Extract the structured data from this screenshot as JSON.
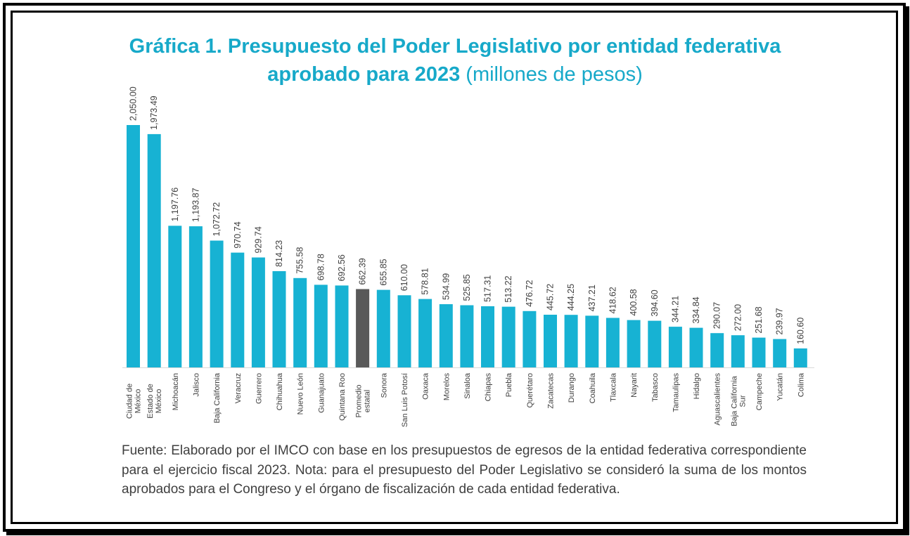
{
  "chart_data": {
    "type": "bar",
    "title_bold_line1": "Gráfica 1. Presupuesto del Poder Legislativo por entidad federativa",
    "title_bold_line2": "aprobado para 2023",
    "title_unit": "(millones de pesos)",
    "categories": [
      "Ciudad de México",
      "Estado de México",
      "Michoacán",
      "Jalisco",
      "Baja California",
      "Veracruz",
      "Guerrero",
      "Chihuahua",
      "Nuevo León",
      "Guanajuato",
      "Quintana Roo",
      "Promedio estatal",
      "Sonora",
      "San Luis Potosí",
      "Oaxaca",
      "Morelos",
      "Sinaloa",
      "Chiapas",
      "Puebla",
      "Querétaro",
      "Zacatecas",
      "Durango",
      "Coahuila",
      "Tlaxcala",
      "Nayarit",
      "Tabasco",
      "Tamaulipas",
      "Hidalgo",
      "Aguascalientes",
      "Baja California Sur",
      "Campeche",
      "Yucatán",
      "Colima"
    ],
    "values": [
      2050.0,
      1973.49,
      1197.76,
      1193.87,
      1072.72,
      970.74,
      929.74,
      814.23,
      755.58,
      698.78,
      692.56,
      662.39,
      655.85,
      610.0,
      578.81,
      534.99,
      525.85,
      517.31,
      513.22,
      476.72,
      445.72,
      444.25,
      437.21,
      418.62,
      400.58,
      394.6,
      344.21,
      334.84,
      290.07,
      272.0,
      251.68,
      239.97,
      160.6
    ],
    "value_labels": [
      "2,050.00",
      "1,973.49",
      "1,197.76",
      "1,193.87",
      "1,072.72",
      "970.74",
      "929.74",
      "814.23",
      "755.58",
      "698.78",
      "692.56",
      "662.39",
      "655.85",
      "610.00",
      "578.81",
      "534.99",
      "525.85",
      "517.31",
      "513.22",
      "476.72",
      "445.72",
      "444.25",
      "437.21",
      "418.62",
      "400.58",
      "394.60",
      "344.21",
      "334.84",
      "290.07",
      "272.00",
      "251.68",
      "239.97",
      "160.60"
    ],
    "tick_labels": [
      [
        "Ciudad de",
        "México"
      ],
      [
        "Estado de",
        "México"
      ],
      [
        "Michoacán"
      ],
      [
        "Jalisco"
      ],
      [
        "Baja California"
      ],
      [
        "Veracruz"
      ],
      [
        "Guerrero"
      ],
      [
        "Chihuahua"
      ],
      [
        "Nuevo León"
      ],
      [
        "Guanajuato"
      ],
      [
        "Quintana Roo"
      ],
      [
        "Promedio",
        "estatal"
      ],
      [
        "Sonora"
      ],
      [
        "San Luis Potosí"
      ],
      [
        "Oaxaca"
      ],
      [
        "Morelos"
      ],
      [
        "Sinaloa"
      ],
      [
        "Chiapas"
      ],
      [
        "Puebla"
      ],
      [
        "Querétaro"
      ],
      [
        "Zacatecas"
      ],
      [
        "Durango"
      ],
      [
        "Coahuila"
      ],
      [
        "Tlaxcala"
      ],
      [
        "Nayarit"
      ],
      [
        "Tabasco"
      ],
      [
        "Tamaulipas"
      ],
      [
        "Hidalgo"
      ],
      [
        "Aguascalientes"
      ],
      [
        "Baja California",
        "Sur"
      ],
      [
        "Campeche"
      ],
      [
        "Yucatán"
      ],
      [
        "Colima"
      ]
    ],
    "highlight_category": "Promedio estatal",
    "ylim": [
      0,
      2050
    ],
    "grid": false,
    "legend": "none",
    "xlabel": "",
    "ylabel": "",
    "colors": {
      "bar": "#17b2d3",
      "highlight": "#595959",
      "title": "#17a9c9",
      "text": "#404040"
    }
  },
  "source_note": "Fuente: Elaborado por el IMCO con base en los presupuestos de egresos de la entidad federativa correspondiente para el ejercicio fiscal 2023. Nota: para el presupuesto del Poder Legislativo se consideró la suma de los montos aprobados para el Congreso y el órgano de fiscalización de cada entidad federativa."
}
